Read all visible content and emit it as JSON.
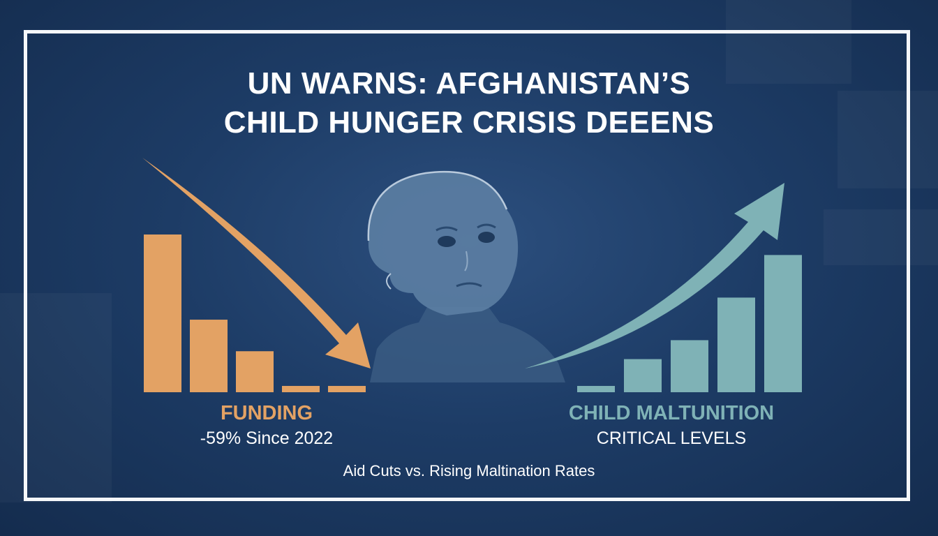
{
  "title": {
    "line1": "UN WARNS: AFGHANISTAN’S",
    "line2": "CHILD HUNGER CRISIS DEEENS"
  },
  "caption": "Aid Cuts vs. Rising Maltination Rates",
  "colors": {
    "funding": "#e3a264",
    "malnutrition": "#7fb2b6",
    "frame": "#f5f7fa",
    "background": "#1d3c66"
  },
  "chart_data": [
    {
      "type": "bar",
      "label": "FUNDING",
      "sublabel": "-59% Since 2022",
      "values": [
        100,
        46,
        26,
        4,
        4
      ],
      "trend": "down",
      "trend_icon": "arrow-down-icon"
    },
    {
      "type": "bar",
      "label": "CHILD MALTUNITION",
      "sublabel": "CRITICAL LEVELS",
      "values": [
        4,
        21,
        33,
        60,
        87
      ],
      "trend": "up",
      "trend_icon": "arrow-up-icon"
    }
  ],
  "illustration": {
    "icon": "child-portrait-icon"
  }
}
